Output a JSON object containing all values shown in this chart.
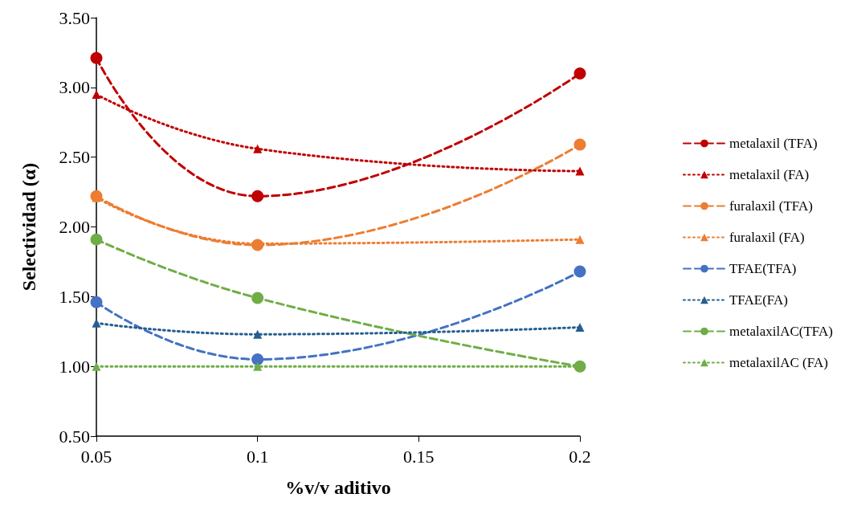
{
  "chart_data": {
    "type": "line",
    "xlabel": "%v/v aditivo",
    "ylabel": "Selectividad (α)",
    "x": [
      0.05,
      0.1,
      0.2
    ],
    "xlim": [
      0.05,
      0.2
    ],
    "xticks": [
      0.05,
      0.1,
      0.15,
      0.2
    ],
    "ylim": [
      0.5,
      3.5
    ],
    "yticks": [
      {
        "value": 0.5,
        "label": "0.50"
      },
      {
        "value": 1,
        "label": "1.00"
      },
      {
        "value": 1.5,
        "label": "1.50"
      },
      {
        "value": 2,
        "label": "2.00"
      },
      {
        "value": 2.5,
        "label": "2.50"
      },
      {
        "value": 3,
        "label": "3.00"
      },
      {
        "value": 3.5,
        "label": "3.50"
      }
    ],
    "grid": false,
    "legend": "right",
    "series": [
      {
        "name": "metalaxil (TFA)",
        "color": "#c00000",
        "marker": "circle",
        "line_style": "dashed",
        "values": [
          3.21,
          2.22,
          3.1
        ]
      },
      {
        "name": "metalaxil (FA)",
        "color": "#c00000",
        "marker": "triangle",
        "line_style": "dotted",
        "values": [
          2.95,
          2.56,
          2.4
        ]
      },
      {
        "name": "furalaxil (TFA)",
        "color": "#ed7d31",
        "marker": "circle",
        "line_style": "dashed",
        "values": [
          2.22,
          1.87,
          2.59
        ]
      },
      {
        "name": "furalaxil (FA)",
        "color": "#ed7d31",
        "marker": "triangle",
        "line_style": "dotted",
        "values": [
          2.21,
          1.88,
          1.91
        ]
      },
      {
        "name": "TFAE(TFA)",
        "color": "#4472c4",
        "marker": "circle",
        "line_style": "dashed",
        "values": [
          1.46,
          1.05,
          1.68
        ]
      },
      {
        "name": "TFAE(FA)",
        "color": "#255e91",
        "marker": "triangle",
        "line_style": "dotted",
        "values": [
          1.31,
          1.23,
          1.28
        ]
      },
      {
        "name": "metalaxilAC(TFA)",
        "color": "#70ad47",
        "marker": "circle",
        "line_style": "dashed",
        "values": [
          1.91,
          1.49,
          1.0
        ]
      },
      {
        "name": "metalaxilAC (FA)",
        "color": "#70ad47",
        "marker": "triangle",
        "line_style": "dotted",
        "values": [
          1.0,
          1.0,
          1.0
        ]
      }
    ]
  }
}
